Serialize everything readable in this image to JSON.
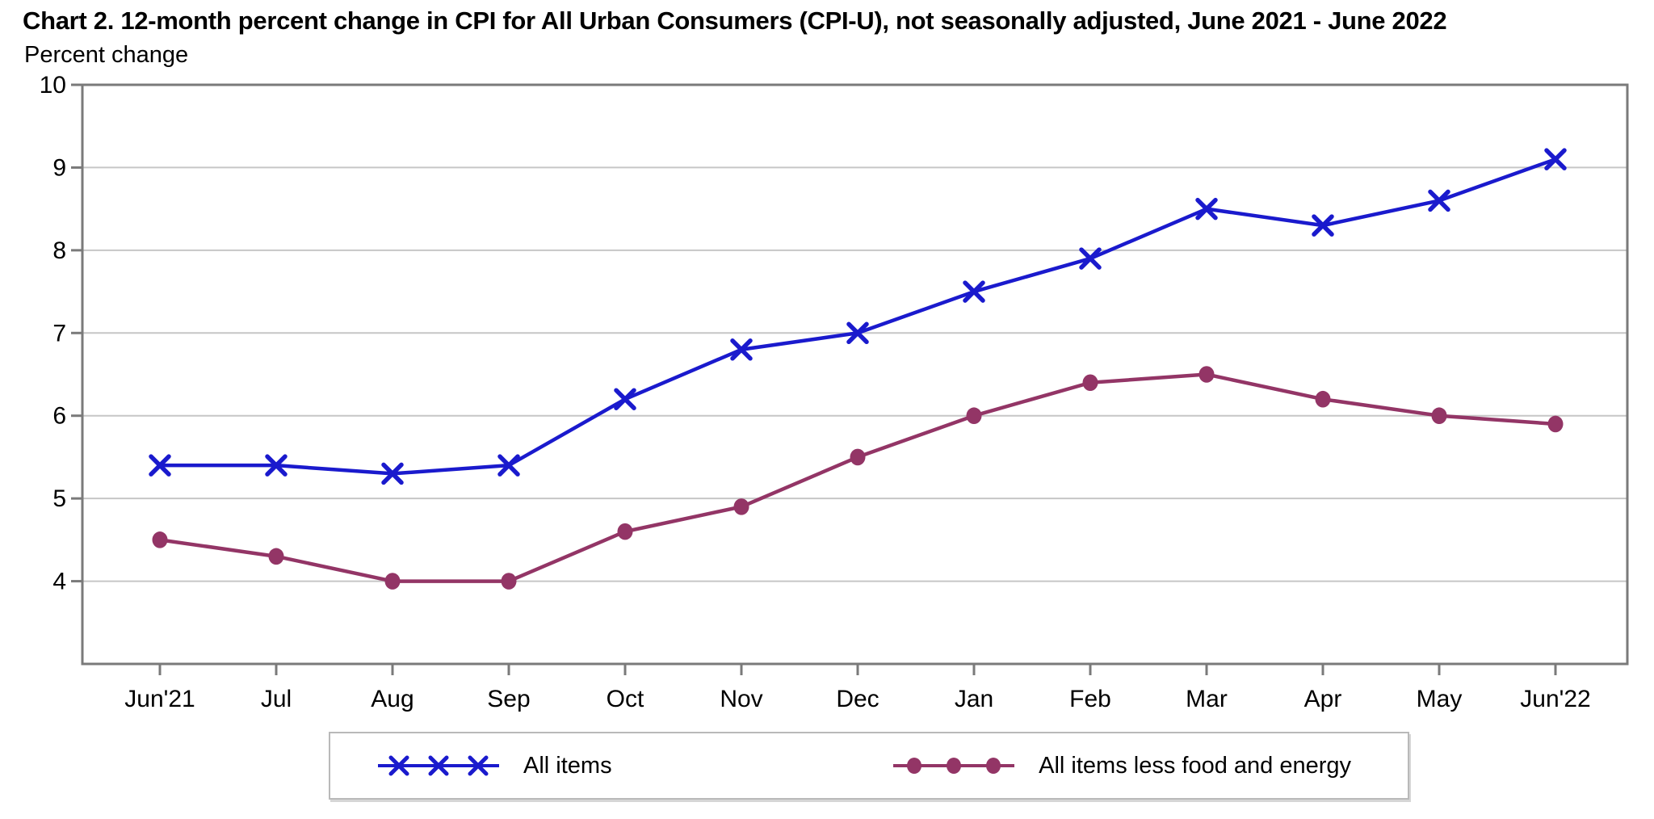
{
  "title": "Chart 2. 12-month percent change in CPI for All Urban Consumers (CPI-U), not seasonally adjusted, June 2021 - June 2022",
  "y_axis_label": "Percent change",
  "colors": {
    "all_items_line": "#1a1acd",
    "core_line": "#933566",
    "gridline": "#c6c6c6",
    "axis_border": "#7a7a7a",
    "tick": "#7a7a7a",
    "text": "#000000",
    "legend_border": "#b9b9b9",
    "background": "#ffffff"
  },
  "chart_data": {
    "type": "line",
    "title": "Chart 2. 12-month percent change in CPI for All Urban Consumers (CPI-U), not seasonally adjusted, June 2021 - June 2022",
    "xlabel": "",
    "ylabel": "Percent change",
    "categories": [
      "Jun'21",
      "Jul",
      "Aug",
      "Sep",
      "Oct",
      "Nov",
      "Dec",
      "Jan",
      "Feb",
      "Mar",
      "Apr",
      "May",
      "Jun'22"
    ],
    "series": [
      {
        "name": "All items",
        "marker": "x",
        "color": "#1a1acd",
        "values": [
          5.4,
          5.4,
          5.3,
          5.4,
          6.2,
          6.8,
          7.0,
          7.5,
          7.9,
          8.5,
          8.3,
          8.6,
          9.1
        ]
      },
      {
        "name": "All items less food and energy",
        "marker": "circle",
        "color": "#933566",
        "values": [
          4.5,
          4.3,
          4.0,
          4.0,
          4.6,
          4.9,
          5.5,
          6.0,
          6.4,
          6.5,
          6.2,
          6.0,
          5.9
        ]
      }
    ],
    "ylim": [
      3,
      10
    ],
    "yticks": [
      4,
      5,
      6,
      7,
      8,
      9,
      10
    ],
    "grid": "horizontal",
    "legend_position": "bottom"
  }
}
